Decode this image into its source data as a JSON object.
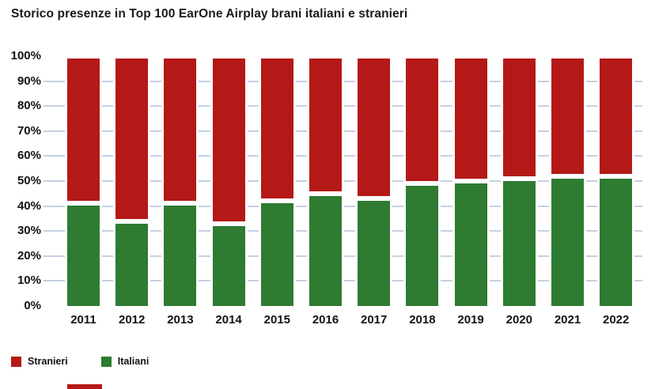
{
  "page": {
    "background": "#ffffff"
  },
  "chart_data": {
    "type": "bar",
    "stacked": true,
    "percent_scale": true,
    "title": "Storico presenze in Top 100 EarOne Airplay brani italiani e stranieri",
    "categories": [
      "2011",
      "2012",
      "2013",
      "2014",
      "2015",
      "2016",
      "2017",
      "2018",
      "2019",
      "2020",
      "2021",
      "2022"
    ],
    "series": [
      {
        "name": "Stranieri",
        "color": "#b41917",
        "values": [
          59,
          66,
          59,
          67,
          58,
          55,
          57,
          51,
          50,
          49,
          48,
          48
        ]
      },
      {
        "name": "Italiani",
        "color": "#2e7b31",
        "values": [
          41,
          34,
          41,
          33,
          42,
          45,
          43,
          49,
          50,
          51,
          52,
          52
        ]
      }
    ],
    "xlabel": "",
    "ylabel": "",
    "ylim": [
      0,
      100
    ],
    "ytick_step": 10,
    "ytick_suffix": "%",
    "grid": true,
    "gridline_color": "#c6cfe2",
    "grid_lines_at": [
      10,
      20,
      30,
      40,
      50,
      60,
      70,
      80,
      90
    ],
    "legend_position": "bottom-left",
    "legend_order": [
      "Stranieri",
      "Italiani"
    ]
  }
}
